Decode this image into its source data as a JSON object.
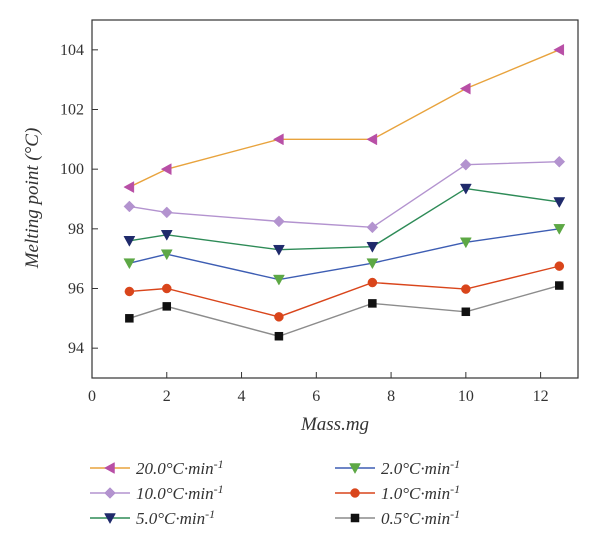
{
  "chart_data": {
    "type": "line",
    "xlabel": "Mass.mg",
    "ylabel": "Melting point (°C)",
    "xlim": [
      0,
      13
    ],
    "ylim": [
      93,
      105
    ],
    "xticks": [
      0,
      2,
      4,
      6,
      8,
      10,
      12
    ],
    "yticks": [
      94,
      96,
      98,
      100,
      102,
      104
    ],
    "x": [
      1,
      2,
      5,
      7.5,
      10,
      12.5
    ],
    "grid": false,
    "legend_position": "bottom",
    "series": [
      {
        "name": "20.0°C·min",
        "unit_sup": "-1",
        "color": "#E8A33D",
        "marker_color": "#B84FA6",
        "marker": "triangle-left",
        "values": [
          99.4,
          100.0,
          101.0,
          101.0,
          102.7,
          104.0
        ]
      },
      {
        "name": "10.0°C·min",
        "unit_sup": "-1",
        "color": "#B393CF",
        "marker_color": "#B393CF",
        "marker": "diamond",
        "values": [
          98.75,
          98.55,
          98.25,
          98.05,
          100.15,
          100.25
        ]
      },
      {
        "name": "5.0°C·min",
        "unit_sup": "-1",
        "color": "#2E8B57",
        "marker_color": "#1F2A6B",
        "marker": "triangle-down",
        "values": [
          97.6,
          97.8,
          97.3,
          97.4,
          99.35,
          98.9
        ]
      },
      {
        "name": "2.0°C·min",
        "unit_sup": "-1",
        "color": "#3D5DB3",
        "marker_color": "#5DA845",
        "marker": "triangle-down-green",
        "values": [
          96.85,
          97.15,
          96.3,
          96.85,
          97.55,
          98.0
        ]
      },
      {
        "name": "1.0°C·min",
        "unit_sup": "-1",
        "color": "#D9451B",
        "marker_color": "#D9451B",
        "marker": "circle",
        "values": [
          95.9,
          96.0,
          95.05,
          96.2,
          95.98,
          96.75
        ]
      },
      {
        "name": "0.5°C·min",
        "unit_sup": "-1",
        "color": "#8C8C8C",
        "marker_color": "#111111",
        "marker": "square",
        "values": [
          95.0,
          95.4,
          94.4,
          95.5,
          95.22,
          96.1
        ]
      }
    ]
  }
}
